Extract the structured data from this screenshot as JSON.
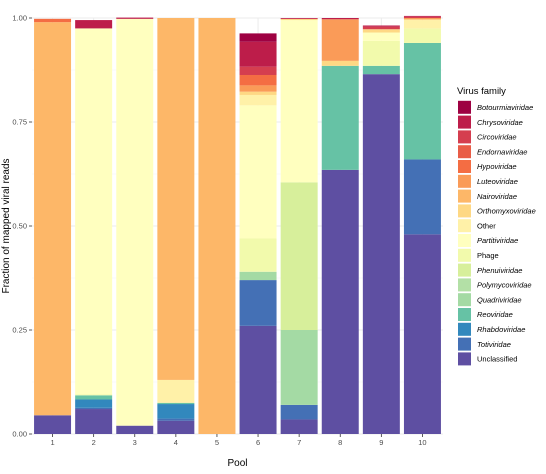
{
  "chart_data": {
    "type": "bar",
    "stacked": true,
    "xlabel": "Pool",
    "ylabel": "Fraction of mapped viral reads",
    "ylim": [
      0,
      1
    ],
    "yticks": [
      0.0,
      0.25,
      0.5,
      0.75,
      1.0
    ],
    "ytick_labels": [
      "0.00",
      "0.25",
      "0.50",
      "0.75",
      "1.00"
    ],
    "categories": [
      "1",
      "2",
      "3",
      "4",
      "5",
      "6",
      "7",
      "8",
      "9",
      "10"
    ],
    "grid": true,
    "legend_position": "right",
    "legend_title": "Virus family",
    "series": [
      {
        "name": "Botourmiaviridae",
        "italic": true,
        "color": "#9E0142",
        "values": [
          0,
          0,
          0,
          0,
          0,
          0.02,
          0,
          0,
          0,
          0
        ]
      },
      {
        "name": "Chrysoviridae",
        "italic": true,
        "color": "#BD1D4A",
        "values": [
          0,
          0.02,
          0.003,
          0,
          0,
          0.06,
          0.002,
          0.003,
          0.003,
          0.002
        ]
      },
      {
        "name": "Circoviridae",
        "italic": true,
        "color": "#D53E4F",
        "values": [
          0,
          0,
          0,
          0,
          0,
          0.02,
          0,
          0,
          0.006,
          0.003
        ]
      },
      {
        "name": "Endornaviridae",
        "italic": true,
        "color": "#E95D47",
        "values": [
          0,
          0,
          0,
          0,
          0,
          0,
          0,
          0,
          0,
          0
        ]
      },
      {
        "name": "Hypoviridae",
        "italic": true,
        "color": "#F46D43",
        "values": [
          0.008,
          0,
          0,
          0,
          0,
          0.025,
          0,
          0,
          0,
          0
        ]
      },
      {
        "name": "Luteoviridae",
        "italic": true,
        "color": "#FA9B58",
        "values": [
          0,
          0,
          0,
          0,
          0,
          0.015,
          0,
          0.1,
          0,
          0.003
        ]
      },
      {
        "name": "Nairoviridae",
        "italic": true,
        "color": "#FDB768",
        "values": [
          0.945,
          0,
          0,
          0.87,
          1.0,
          0,
          0,
          0,
          0,
          0
        ]
      },
      {
        "name": "Orthomyxoviridae",
        "italic": true,
        "color": "#FED884",
        "values": [
          0,
          0,
          0,
          0,
          0,
          0.008,
          0.003,
          0.012,
          0.008,
          0.002
        ]
      },
      {
        "name": "Other",
        "italic": false,
        "color": "#FFF1A8",
        "values": [
          0,
          0,
          0,
          0.055,
          0,
          0.025,
          0,
          0,
          0,
          0.02
        ]
      },
      {
        "name": "Partitiviridae",
        "italic": true,
        "color": "#FFFFBF",
        "values": [
          0,
          0.88,
          0.978,
          0,
          0,
          0.32,
          0.39,
          0,
          0.02,
          0
        ]
      },
      {
        "name": "Phage",
        "italic": false,
        "color": "#F2FAAC",
        "values": [
          0,
          0.002,
          0,
          0,
          0,
          0.08,
          0,
          0,
          0.06,
          0.035
        ]
      },
      {
        "name": "Phenuiviridae",
        "italic": true,
        "color": "#D7EF9B",
        "values": [
          0,
          0,
          0,
          0,
          0,
          0,
          0.355,
          0,
          0,
          0
        ]
      },
      {
        "name": "Polymycoviridae",
        "italic": true,
        "color": "#B3E0A6",
        "values": [
          0,
          0,
          0,
          0,
          0,
          0,
          0,
          0,
          0,
          0
        ]
      },
      {
        "name": "Quadriviridae",
        "italic": true,
        "color": "#A4DAA4",
        "values": [
          0,
          0,
          0,
          0,
          0,
          0.02,
          0.18,
          0,
          0,
          0
        ]
      },
      {
        "name": "Reoviridae",
        "italic": true,
        "color": "#66C2A5",
        "values": [
          0,
          0.01,
          0,
          0.003,
          0,
          0,
          0,
          0.25,
          0.02,
          0.28
        ]
      },
      {
        "name": "Rhabdoviridae",
        "italic": true,
        "color": "#3288BD",
        "values": [
          0,
          0.02,
          0,
          0.035,
          0,
          0,
          0,
          0,
          0,
          0
        ]
      },
      {
        "name": "Totiviridae",
        "italic": true,
        "color": "#4470B5",
        "values": [
          0,
          0.003,
          0,
          0.005,
          0,
          0.11,
          0.035,
          0,
          0,
          0.18
        ]
      },
      {
        "name": "Unclassified",
        "italic": false,
        "color": "#5E4FA2",
        "values": [
          0.045,
          0.06,
          0.02,
          0.032,
          0,
          0.26,
          0.035,
          0.635,
          0.865,
          0.48
        ]
      }
    ]
  }
}
